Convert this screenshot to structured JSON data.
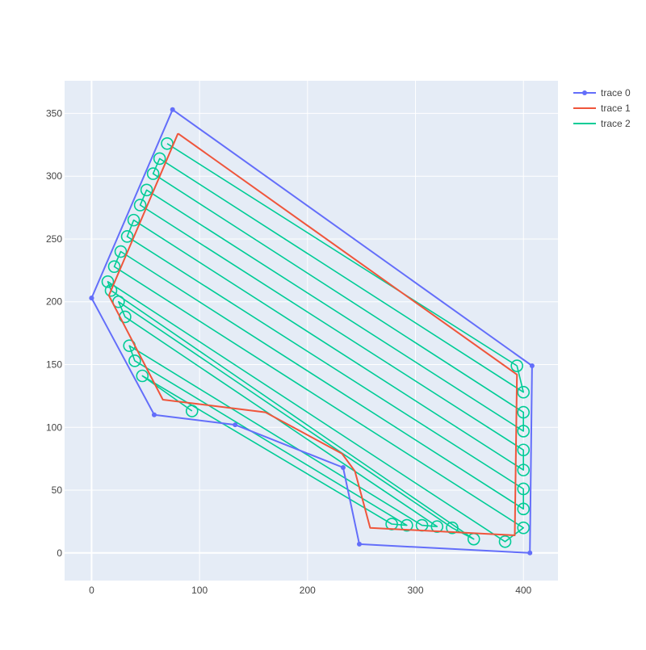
{
  "chart_data": {
    "type": "line",
    "title": "",
    "xlabel": "",
    "ylabel": "",
    "xlim": [
      -25,
      432
    ],
    "ylim": [
      -22,
      376
    ],
    "x_ticks": [
      0,
      100,
      200,
      300,
      400
    ],
    "y_ticks": [
      0,
      50,
      100,
      150,
      200,
      250,
      300,
      350
    ],
    "grid": true,
    "legend_position": "top-right",
    "colors": {
      "plot_background": "#E5ECF6",
      "grid": "#ffffff",
      "trace0": "#636EFA",
      "trace1": "#EF553B",
      "trace2": "#00CC96"
    },
    "series": [
      {
        "name": "trace 0",
        "mode": "lines+markers",
        "x": [
          0,
          75,
          408,
          406,
          248,
          233,
          133,
          58,
          0
        ],
        "y": [
          203,
          353,
          149,
          0,
          7,
          68,
          102,
          110,
          203
        ]
      },
      {
        "name": "trace 1",
        "mode": "lines",
        "x": [
          80,
          394,
          392,
          258,
          244,
          232,
          161,
          66,
          16,
          80
        ],
        "y": [
          334,
          142,
          14,
          20,
          65,
          79,
          112,
          122,
          205,
          334
        ]
      },
      {
        "name": "trace 2",
        "mode": "lines",
        "description": "boustrophedon coverage path of parallel diagonal passes joined by loop turns",
        "left_turns": [
          [
            70,
            326
          ],
          [
            63,
            314
          ],
          [
            57,
            302
          ],
          [
            51,
            289
          ],
          [
            45,
            277
          ],
          [
            39,
            265
          ],
          [
            33,
            252
          ],
          [
            27,
            240
          ],
          [
            21,
            228
          ],
          [
            15,
            216
          ],
          [
            18,
            209
          ],
          [
            25,
            200
          ],
          [
            31,
            188
          ],
          [
            35,
            165
          ],
          [
            40,
            153
          ],
          [
            47,
            141
          ]
        ],
        "right_turns": [
          [
            394,
            149
          ],
          [
            400,
            128
          ],
          [
            400,
            112
          ],
          [
            400,
            97
          ],
          [
            400,
            82
          ],
          [
            400,
            66
          ],
          [
            400,
            51
          ],
          [
            400,
            35
          ],
          [
            400,
            20
          ],
          [
            383,
            9
          ],
          [
            354,
            11
          ],
          [
            334,
            20
          ],
          [
            320,
            21
          ],
          [
            306,
            22
          ],
          [
            292,
            22
          ],
          [
            278,
            23
          ],
          [
            93,
            113
          ]
        ]
      }
    ]
  }
}
